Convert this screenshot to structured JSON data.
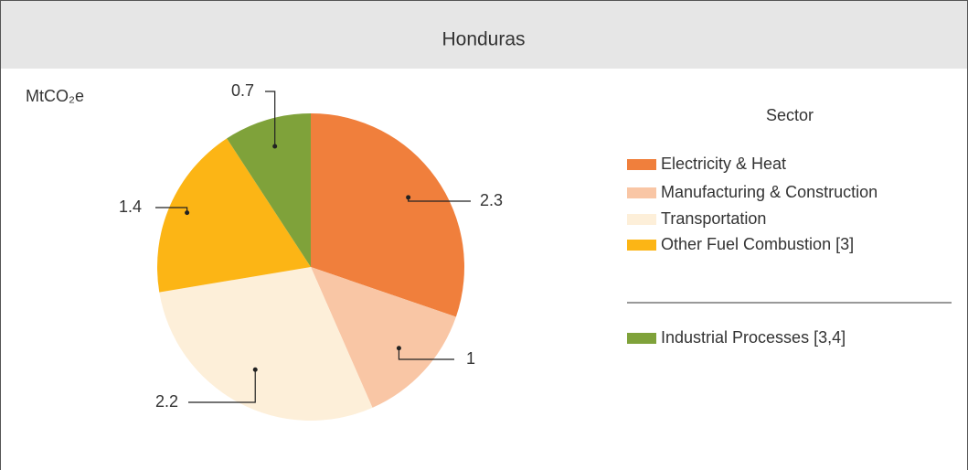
{
  "chart_data": {
    "type": "pie",
    "title": "Honduras",
    "unit_label": "MtCO₂e",
    "legend_title": "Sector",
    "categories": [
      "Electricity & Heat",
      "Manufacturing & Construction",
      "Transportation",
      "Other Fuel Combustion [3]",
      "Industrial Processes [3,4]"
    ],
    "values": [
      2.3,
      1.0,
      2.2,
      1.4,
      0.7
    ],
    "colors": [
      "#f07f3c",
      "#f9c6a5",
      "#fdefd9",
      "#fcb515",
      "#7fa23a"
    ]
  }
}
